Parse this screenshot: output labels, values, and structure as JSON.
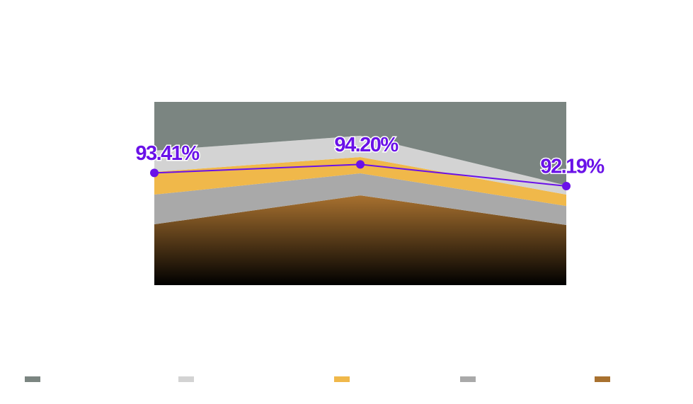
{
  "chart_data": {
    "type": "stacked-area-line",
    "categories": [
      null,
      null,
      null
    ],
    "ylim": [
      0,
      100
    ],
    "y2lim": [
      83,
      100
    ],
    "series": [
      {
        "color": "#7b8581",
        "values": [
          26.6,
          18.5,
          45.6
        ]
      },
      {
        "color": "#d3d3d3",
        "values": [
          11.6,
          11.6,
          5.0
        ]
      },
      {
        "color": "#f0b84a",
        "values": [
          12.4,
          8.9,
          6.2
        ]
      },
      {
        "color": "#a9a9a9",
        "values": [
          16.2,
          12.0,
          10.4
        ]
      },
      {
        "color": "#a8712f",
        "values": [
          33.2,
          49.0,
          32.8
        ]
      }
    ],
    "line": {
      "color": "#6a11e8",
      "axis": "y2",
      "values": [
        93.41,
        94.2,
        92.19
      ],
      "value_labels": [
        "93.41%",
        "94.20%",
        "92.19%"
      ]
    }
  }
}
